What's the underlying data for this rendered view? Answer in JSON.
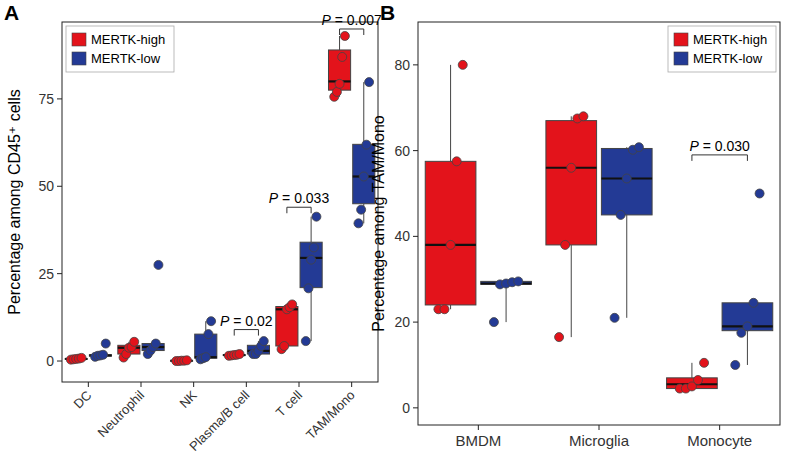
{
  "chart_data": [
    {
      "type": "box",
      "panel": "A",
      "y_label": "Percentage among CD45⁺ cells",
      "categories": [
        "DC",
        "Neutrophil",
        "NK",
        "Plasma/B cell",
        "T cell",
        "TAM/Mono"
      ],
      "ylim": [
        -6,
        97
      ],
      "yticks": [
        0,
        25,
        50,
        75
      ],
      "legend": "top-left",
      "series": [
        {
          "name": "MERTK-high",
          "color": "#e3131b",
          "values": [
            [
              0.4,
              0.5,
              0.6,
              0.7,
              0.9
            ],
            [
              1,
              2,
              3.8,
              4,
              5.5
            ],
            [
              0,
              0,
              0.1,
              0.1,
              0.2
            ],
            [
              1.5,
              1.6,
              1.7,
              1.8,
              2
            ],
            [
              3.4,
              4.3,
              14.8,
              15.4,
              16.2
            ],
            [
              75.6,
              77,
              79.3,
              87,
              93
            ]
          ],
          "stats": [
            [
              0.4,
              0.5,
              0.6,
              0.7,
              0.9
            ],
            [
              1,
              2,
              3.8,
              4.5,
              5.5
            ],
            [
              0,
              0,
              0.1,
              0.1,
              0.2
            ],
            [
              1.5,
              1.6,
              1.7,
              1.8,
              2
            ],
            [
              3.4,
              4.3,
              14.8,
              15.6,
              16.2
            ],
            [
              75.6,
              77.5,
              80,
              89,
              93
            ]
          ]
        },
        {
          "name": "MERTK-low",
          "color": "#233a95",
          "values": [
            [
              1.2,
              1.5,
              1.6,
              1.8,
              5
            ],
            [
              2,
              3,
              4,
              5,
              27.5
            ],
            [
              0.5,
              0.8,
              1.1,
              7.7,
              11.4
            ],
            [
              2,
              2,
              2.9,
              4.3,
              5.7
            ],
            [
              5.7,
              20.8,
              29,
              32.5,
              41.3
            ],
            [
              39.4,
              43.3,
              52.8,
              61.9,
              79.8
            ]
          ],
          "stats": [
            [
              1.2,
              1.4,
              1.6,
              1.8,
              1.8
            ],
            [
              2,
              3,
              4,
              5,
              5
            ],
            [
              0.5,
              0.8,
              1.1,
              7.7,
              11.4
            ],
            [
              2,
              2,
              2.9,
              4.5,
              5.7
            ],
            [
              5.7,
              21,
              29.5,
              34,
              41.3
            ],
            [
              39.4,
              45,
              52.8,
              62,
              79.8
            ]
          ]
        }
      ],
      "annotations": [
        {
          "category": 3,
          "text": "P = 0.02",
          "y": 9
        },
        {
          "category": 4,
          "text": "P = 0.033",
          "y": 44
        },
        {
          "category": 5,
          "text": "P = 0.007",
          "y": 95
        }
      ]
    },
    {
      "type": "box",
      "panel": "B",
      "y_label": "Percentage among TAM/Mono",
      "categories": [
        "BMDM",
        "Microglia",
        "Monocyte"
      ],
      "ylim": [
        -4,
        90
      ],
      "yticks": [
        0,
        20,
        40,
        60,
        80
      ],
      "legend": "top-right",
      "series": [
        {
          "name": "MERTK-high",
          "color": "#e3131b",
          "values": [
            [
              23,
              23,
              38,
              57.5,
              80
            ],
            [
              16.5,
              38,
              56,
              67.5,
              68
            ],
            [
              4.5,
              4.5,
              5,
              6.5,
              10.5
            ]
          ],
          "stats": [
            [
              23,
              24,
              38,
              57.5,
              80
            ],
            [
              16.5,
              38,
              56,
              67,
              68
            ],
            [
              4.5,
              4.5,
              5.5,
              7,
              10.5
            ]
          ]
        },
        {
          "name": "MERTK-low",
          "color": "#233a95",
          "values": [
            [
              20,
              28.8,
              29,
              29.3,
              29.5
            ],
            [
              21,
              45,
              53.5,
              60.2,
              60.8
            ],
            [
              10,
              17.5,
              19,
              24.5,
              50
            ]
          ],
          "stats": [
            [
              20,
              28.8,
              29,
              29.5,
              29.7
            ],
            [
              21,
              45,
              53.5,
              60.5,
              60.8
            ],
            [
              10,
              18,
              19,
              24.5,
              24.5
            ]
          ]
        }
      ],
      "annotations": [
        {
          "category": 2,
          "text": "P = 0.030",
          "y": 59
        }
      ]
    }
  ]
}
